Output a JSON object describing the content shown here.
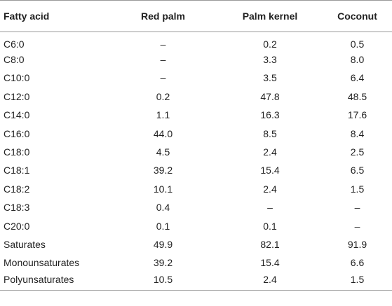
{
  "table": {
    "headers": [
      "Fatty acid",
      "Red palm",
      "Palm kernel",
      "Coconut"
    ],
    "rows": [
      {
        "label": "C6:0",
        "red_palm": "–",
        "palm_kernel": "0.2",
        "coconut": "0.5"
      },
      {
        "label": "C8:0",
        "red_palm": "–",
        "palm_kernel": "3.3",
        "coconut": "8.0"
      },
      {
        "label": "C10:0",
        "red_palm": "–",
        "palm_kernel": "3.5",
        "coconut": "6.4"
      },
      {
        "label": "C12:0",
        "red_palm": "0.2",
        "palm_kernel": "47.8",
        "coconut": "48.5"
      },
      {
        "label": "C14:0",
        "red_palm": "1.1",
        "palm_kernel": "16.3",
        "coconut": "17.6"
      },
      {
        "label": "C16:0",
        "red_palm": "44.0",
        "palm_kernel": "8.5",
        "coconut": "8.4"
      },
      {
        "label": "C18:0",
        "red_palm": "4.5",
        "palm_kernel": "2.4",
        "coconut": "2.5"
      },
      {
        "label": "C18:1",
        "red_palm": "39.2",
        "palm_kernel": "15.4",
        "coconut": "6.5"
      },
      {
        "label": "C18:2",
        "red_palm": "10.1",
        "palm_kernel": "2.4",
        "coconut": "1.5"
      },
      {
        "label": "C18:3",
        "red_palm": "0.4",
        "palm_kernel": "–",
        "coconut": "–"
      },
      {
        "label": "C20:0",
        "red_palm": "0.1",
        "palm_kernel": "0.1",
        "coconut": "–"
      },
      {
        "label": "Saturates",
        "red_palm": "49.9",
        "palm_kernel": "82.1",
        "coconut": "91.9"
      },
      {
        "label": "Monounsaturates",
        "red_palm": "39.2",
        "palm_kernel": "15.4",
        "coconut": "6.6"
      },
      {
        "label": "Polyunsaturates",
        "red_palm": "10.5",
        "palm_kernel": "2.4",
        "coconut": "1.5"
      }
    ]
  }
}
